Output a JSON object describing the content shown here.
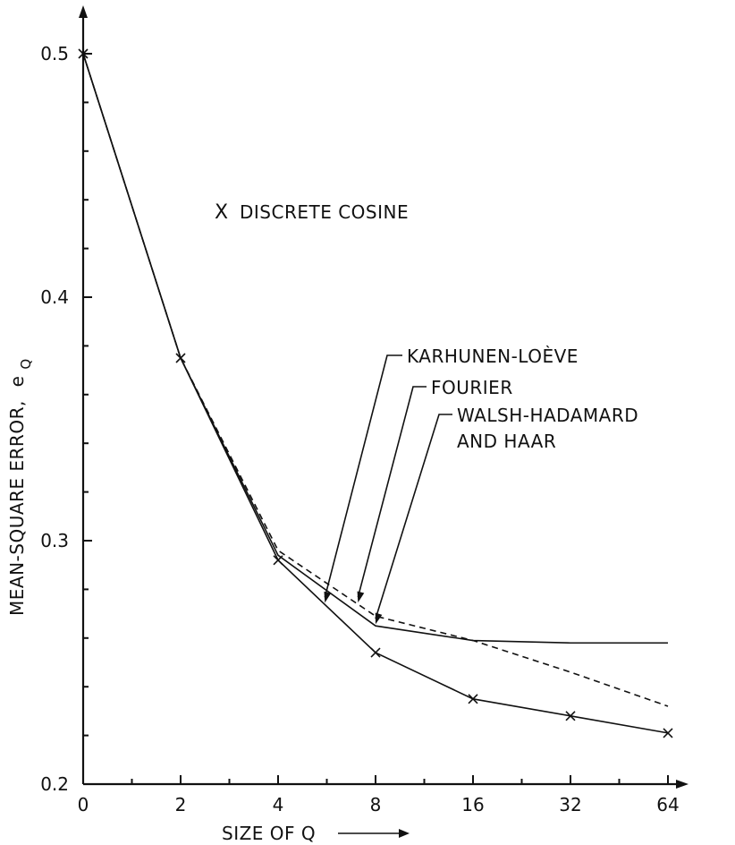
{
  "chart_data": {
    "type": "line",
    "xlabel": "SIZE OF Q",
    "ylabel": "MEAN-SQUARE ERROR,",
    "ylabel_symbol": "e",
    "ylabel_subscript": "Q",
    "x_categories": [
      "0",
      "2",
      "4",
      "8",
      "16",
      "32",
      "64"
    ],
    "y_ticks": [
      "0.2",
      "0.3",
      "0.4",
      "0.5"
    ],
    "ylim": [
      0.2,
      0.5
    ],
    "grid": false,
    "marker_legend": {
      "marker": "X",
      "label": "DISCRETE COSINE"
    },
    "series": [
      {
        "label": "KARHUNEN-LOÈVE",
        "style": "solid",
        "x": [
          "0",
          "2",
          "4",
          "8",
          "16",
          "32",
          "64"
        ],
        "y": [
          0.5,
          0.375,
          0.292,
          0.254,
          0.235,
          0.228,
          0.221
        ]
      },
      {
        "label": "FOURIER",
        "style": "dashed",
        "x": [
          "0",
          "2",
          "4",
          "8",
          "16",
          "32",
          "64"
        ],
        "y": [
          0.5,
          0.375,
          0.296,
          0.269,
          0.259,
          0.246,
          0.232
        ]
      },
      {
        "label": "WALSH-HADAMARD AND HAAR",
        "label_lines": [
          "WALSH-HADAMARD",
          "AND HAAR"
        ],
        "style": "solid",
        "x": [
          "0",
          "2",
          "4",
          "8",
          "16",
          "32",
          "64"
        ],
        "y": [
          0.5,
          0.375,
          0.294,
          0.265,
          0.259,
          0.258,
          0.258
        ]
      },
      {
        "label": "DISCRETE COSINE",
        "style": "markers",
        "x": [
          "0",
          "2",
          "4",
          "8",
          "16",
          "32",
          "64"
        ],
        "y": [
          0.5,
          0.375,
          0.292,
          0.254,
          0.235,
          0.228,
          0.221
        ]
      }
    ]
  }
}
